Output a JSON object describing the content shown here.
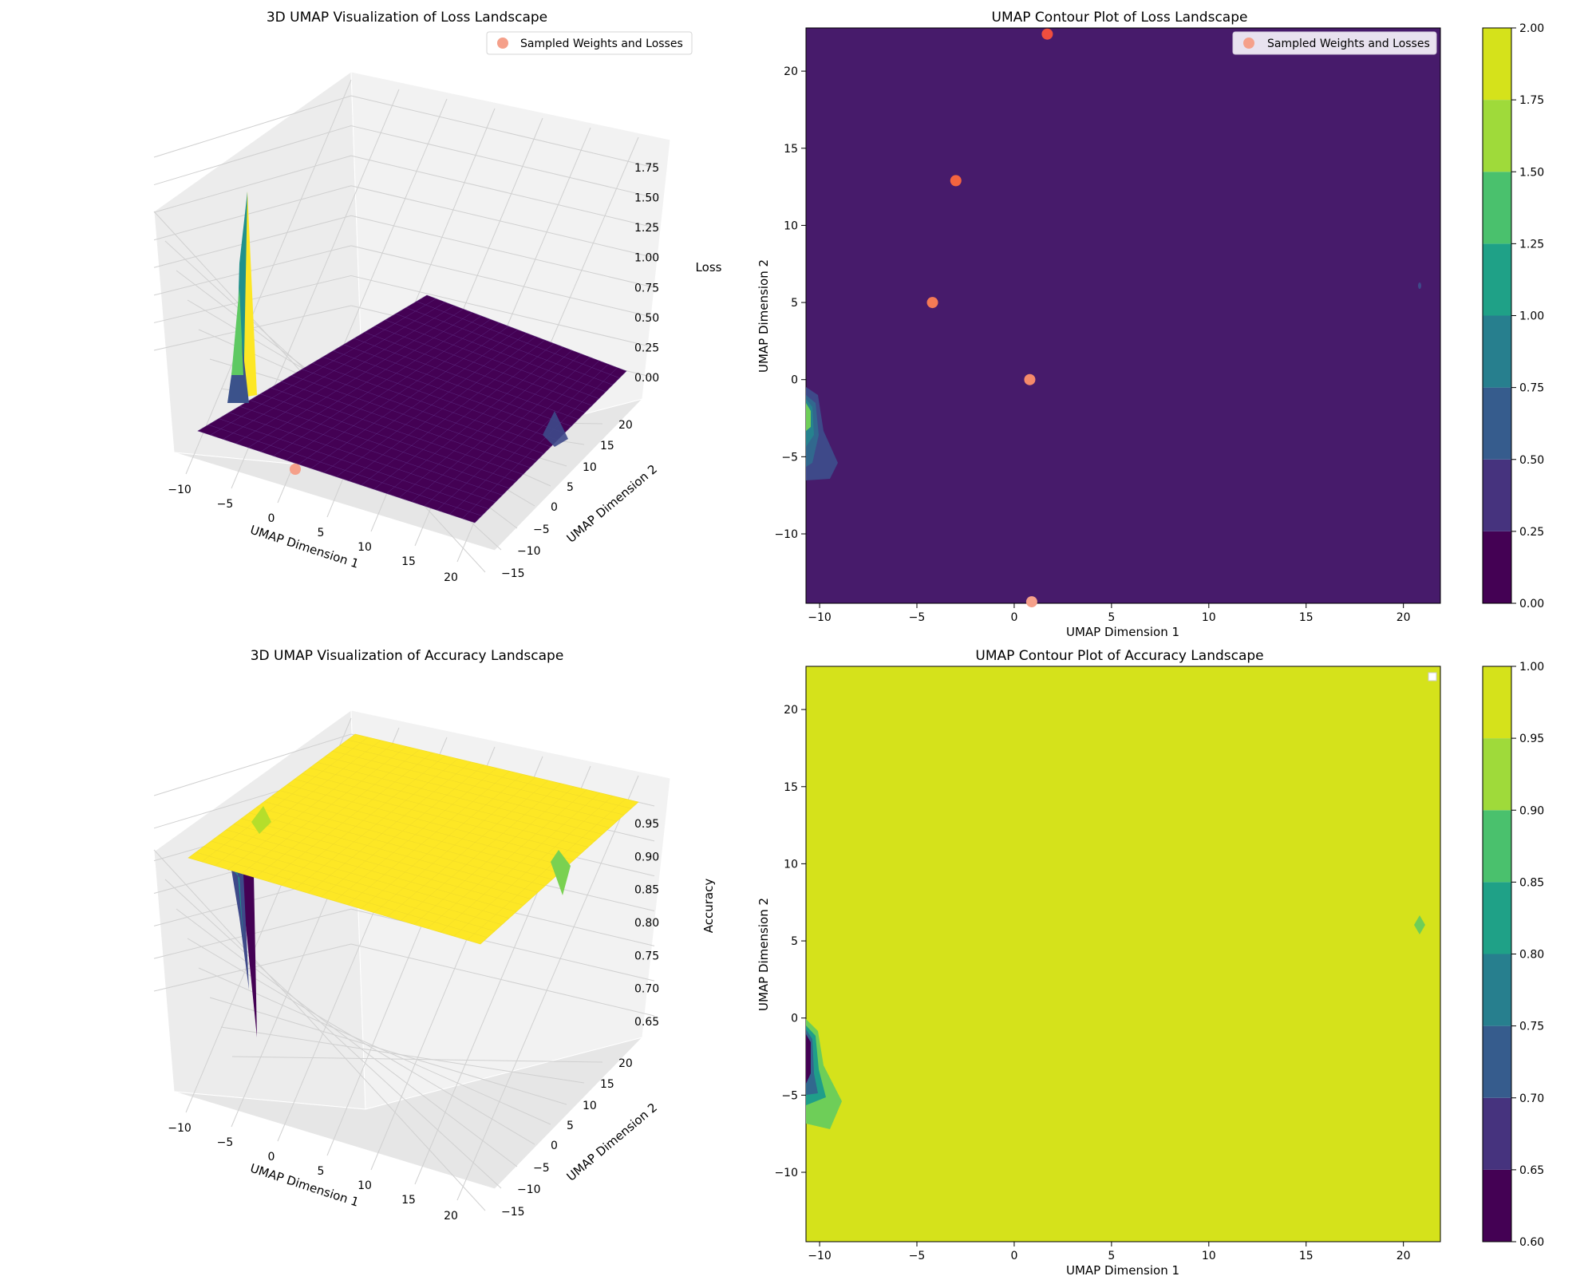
{
  "colors": {
    "viridis": [
      "#440154",
      "#482878",
      "#3e4989",
      "#31688e",
      "#26828e",
      "#1f9e89",
      "#35b779",
      "#6ece58",
      "#b5de2b",
      "#fde725"
    ],
    "sample_points": "#f47a5f",
    "sample_points_alt": "#f5a08a",
    "pane": "#f2f2f2"
  },
  "chart_data": [
    {
      "type": "surface3d",
      "title": "3D UMAP Visualization of Loss Landscape",
      "xlabel": "UMAP Dimension 1",
      "ylabel": "UMAP Dimension 2",
      "zlabel": "Loss",
      "xticks": [
        "−10",
        "−5",
        "0",
        "5",
        "10",
        "15",
        "20"
      ],
      "yticks": [
        "−15",
        "−10",
        "−5",
        "0",
        "5",
        "10",
        "15",
        "20"
      ],
      "zticks": [
        "0.00",
        "0.25",
        "0.50",
        "0.75",
        "1.00",
        "1.25",
        "1.50",
        "1.75"
      ],
      "legend": [
        "Sampled Weights and Losses"
      ],
      "legend_position": "top-right",
      "surface_base_value": 0.0,
      "peak": {
        "x": -10,
        "y": -3,
        "z": 1.8
      },
      "grid": true
    },
    {
      "type": "contour",
      "title": "UMAP Contour Plot of Loss Landscape",
      "xlabel": "UMAP Dimension 1",
      "ylabel": "UMAP Dimension 2",
      "xticks": [
        "−10",
        "−5",
        "0",
        "5",
        "10",
        "15",
        "20"
      ],
      "yticks": [
        "−10",
        "−5",
        "0",
        "5",
        "10",
        "15",
        "20"
      ],
      "xlim": [
        -10.7,
        21.9
      ],
      "ylim": [
        -14.5,
        22.8
      ],
      "colorbar_ticks": [
        "0.00",
        "0.25",
        "0.50",
        "0.75",
        "1.00",
        "1.25",
        "1.50",
        "1.75",
        "2.00"
      ],
      "colorbar_range": [
        0,
        2
      ],
      "legend": [
        "Sampled Weights and Losses"
      ],
      "legend_position": "top-right",
      "background_level": 0.125,
      "points": [
        {
          "x": 1.7,
          "y": 22.4
        },
        {
          "x": -3.0,
          "y": 12.9
        },
        {
          "x": -4.2,
          "y": 5.0
        },
        {
          "x": 0.8,
          "y": 0.0
        },
        {
          "x": 0.9,
          "y": -14.4
        }
      ]
    },
    {
      "type": "surface3d",
      "title": "3D UMAP Visualization of Accuracy Landscape",
      "xlabel": "UMAP Dimension 1",
      "ylabel": "UMAP Dimension 2",
      "zlabel": "Accuracy",
      "xticks": [
        "−10",
        "−5",
        "0",
        "5",
        "10",
        "15",
        "20"
      ],
      "yticks": [
        "−15",
        "−10",
        "−5",
        "0",
        "5",
        "10",
        "15",
        "20"
      ],
      "zticks": [
        "0.65",
        "0.70",
        "0.75",
        "0.80",
        "0.85",
        "0.90",
        "0.95"
      ],
      "surface_base_value": 1.0,
      "dip": {
        "x": -10,
        "y": -3,
        "z": 0.62
      },
      "grid": true
    },
    {
      "type": "contour",
      "title": "UMAP Contour Plot of Accuracy Landscape",
      "xlabel": "UMAP Dimension 1",
      "ylabel": "UMAP Dimension 2",
      "xticks": [
        "−10",
        "−5",
        "0",
        "5",
        "10",
        "15",
        "20"
      ],
      "yticks": [
        "−10",
        "−5",
        "0",
        "5",
        "10",
        "15",
        "20"
      ],
      "xlim": [
        -10.7,
        21.9
      ],
      "ylim": [
        -14.5,
        22.8
      ],
      "colorbar_ticks": [
        "0.60",
        "0.65",
        "0.70",
        "0.75",
        "0.80",
        "0.85",
        "0.90",
        "0.95",
        "1.00"
      ],
      "colorbar_range": [
        0.6,
        1.0
      ],
      "legend_position": "top-right",
      "background_level": 0.975
    }
  ]
}
